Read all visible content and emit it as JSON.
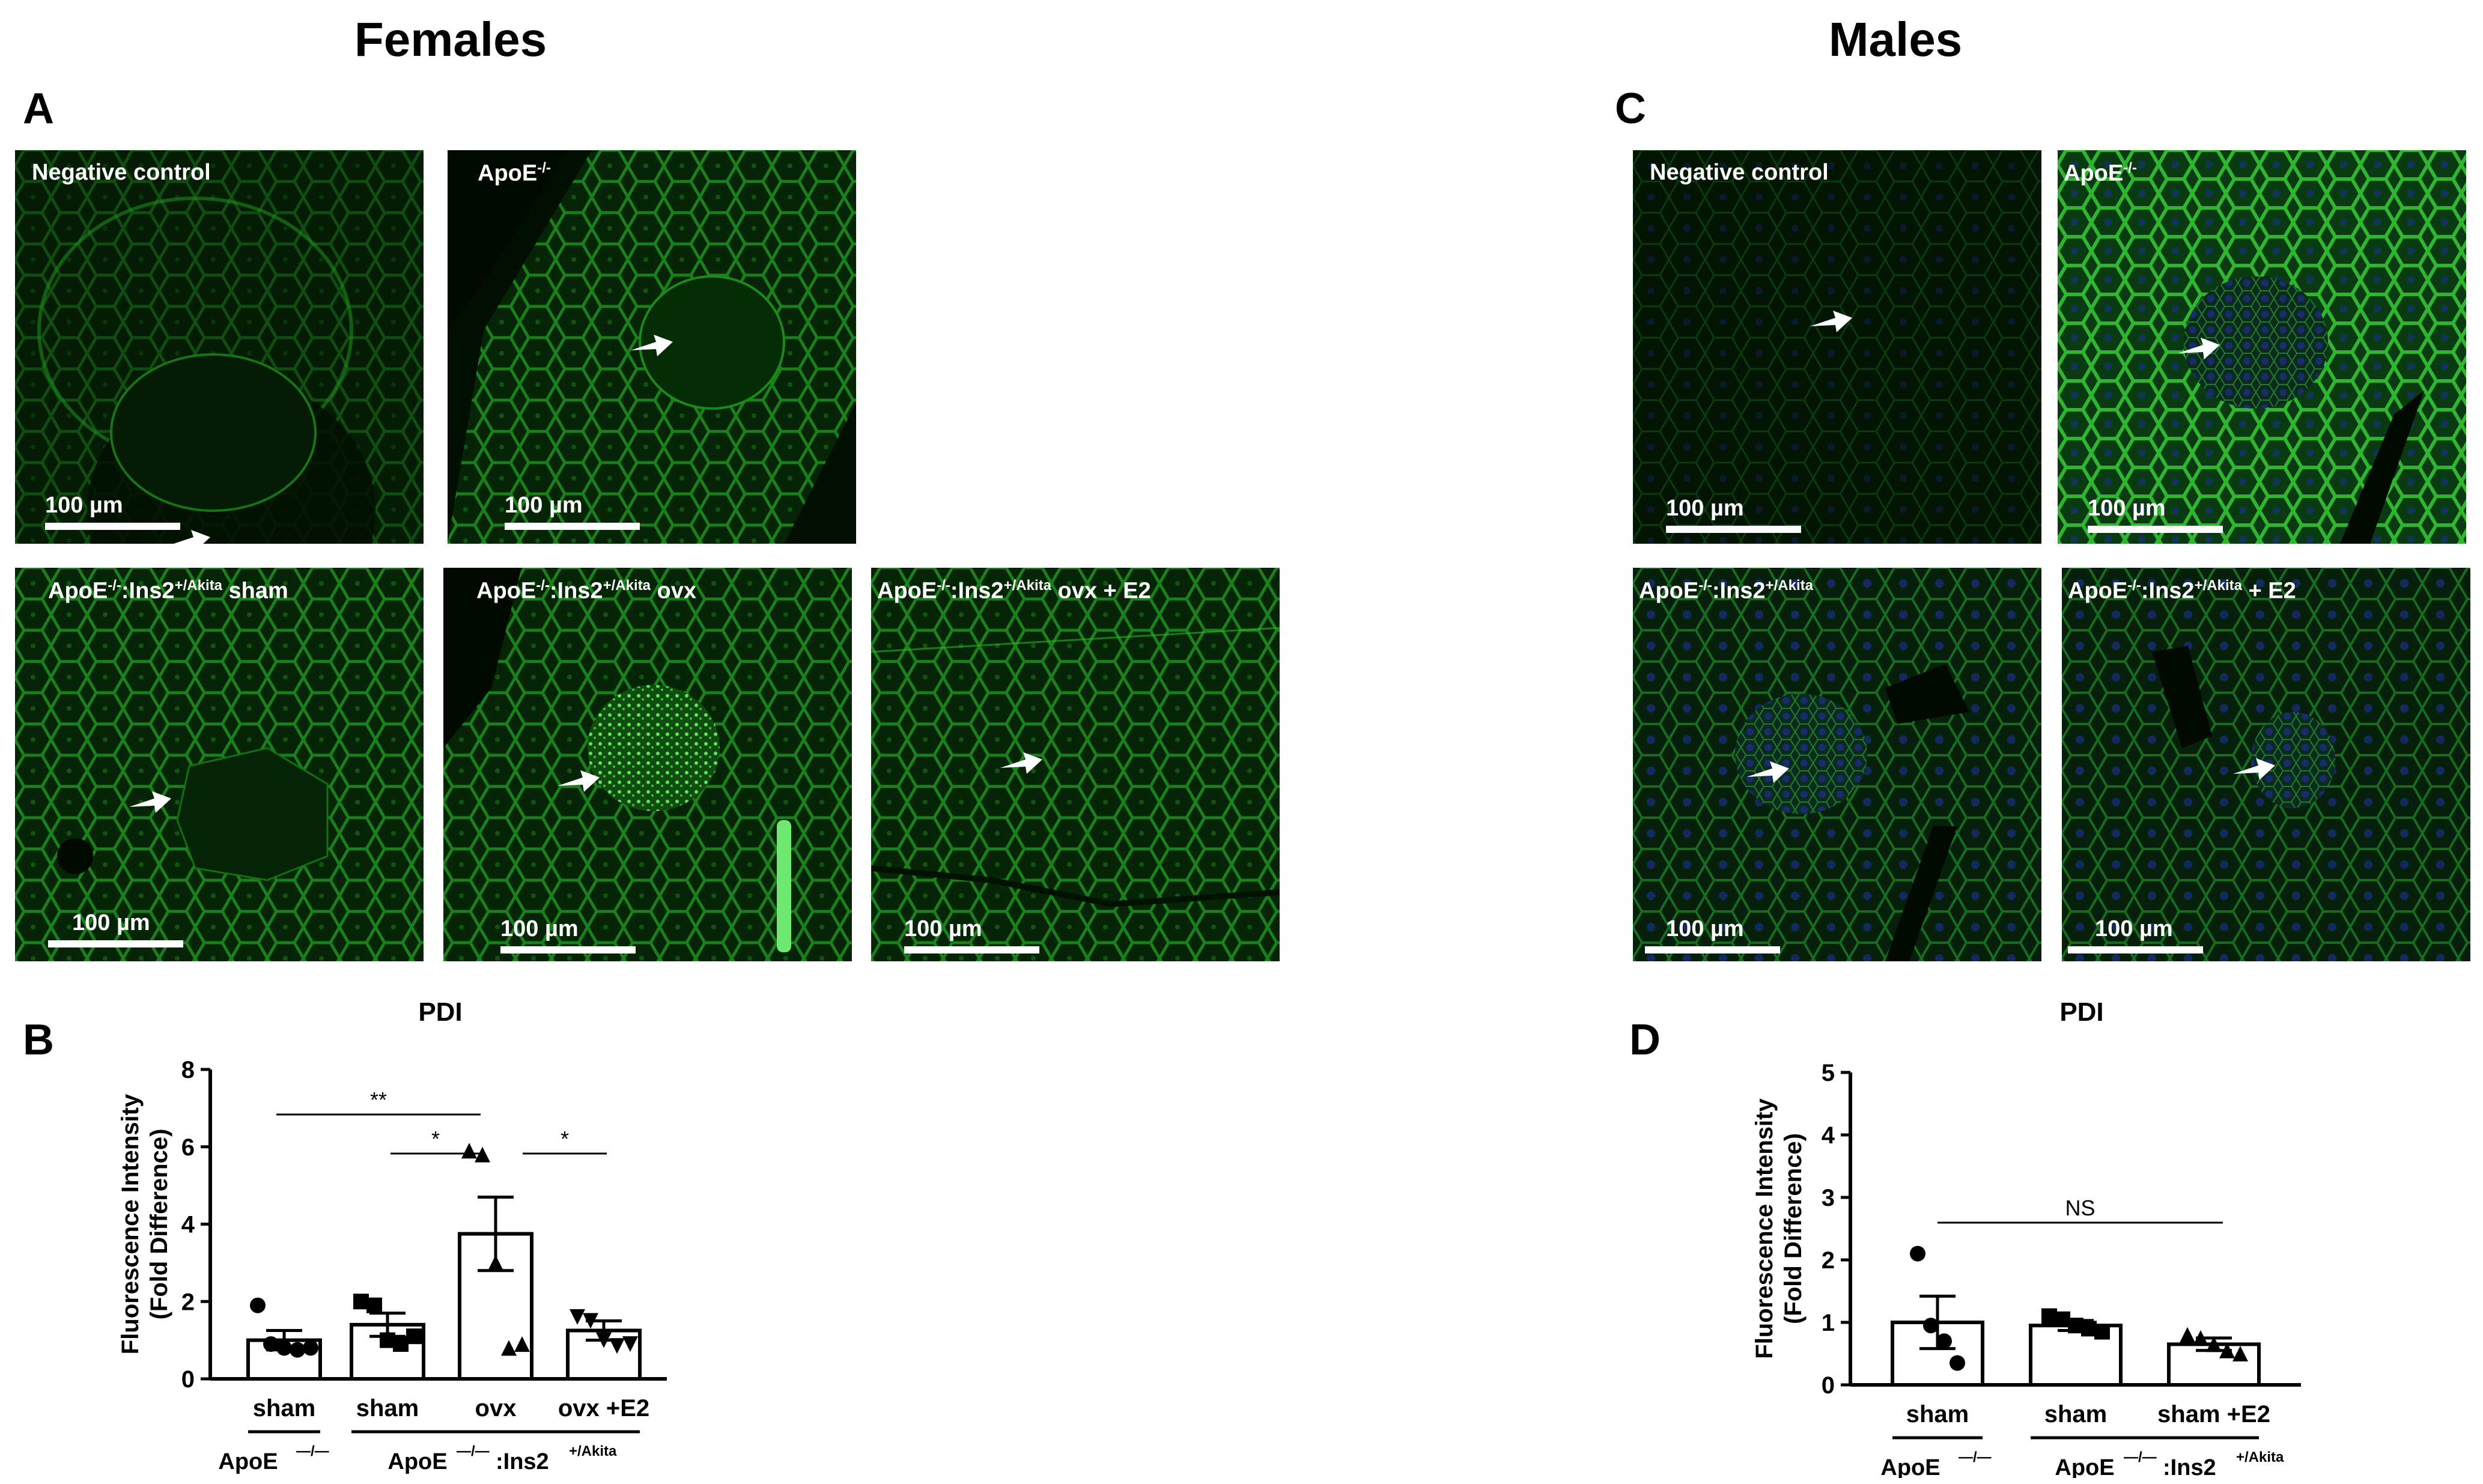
{
  "sections": {
    "females": "Females",
    "males": "Males"
  },
  "panel_letters": {
    "a": "A",
    "b": "B",
    "c": "C",
    "d": "D"
  },
  "micrographs": {
    "scale_label": "100 µm",
    "fa1": {
      "label": "Negative control",
      "sup": "",
      "tail": ""
    },
    "fa2": {
      "label": "ApoE",
      "sup": "-/-",
      "tail": ""
    },
    "fa3": {
      "label": "ApoE",
      "sup": "-/-",
      "mid": ":Ins2",
      "sup2": "+/Akita",
      "tail": " sham"
    },
    "fa4": {
      "label": "ApoE",
      "sup": "-/-",
      "mid": ":Ins2",
      "sup2": "+/Akita",
      "tail": " ovx"
    },
    "fa5": {
      "label": "ApoE",
      "sup": "-/-",
      "mid": ":Ins2",
      "sup2": "+/Akita",
      "tail": " ovx + E2"
    },
    "mc1": {
      "label": "Negative control",
      "sup": "",
      "tail": ""
    },
    "mc2": {
      "label": "ApoE",
      "sup": "-/-",
      "tail": ""
    },
    "mc3": {
      "label": "ApoE",
      "sup": "-/-",
      "mid": ":Ins2",
      "sup2": "+/Akita",
      "tail": ""
    },
    "mc4": {
      "label": "ApoE",
      "sup": "-/-",
      "mid": ":Ins2",
      "sup2": "+/Akita",
      "tail": " + E2"
    }
  },
  "colors": {
    "tissue_green": "#1f8f1f",
    "background": "#031603",
    "nuclei_blue": "#1a2f8a"
  },
  "chart_data": [
    {
      "type": "bar",
      "title": "PDI",
      "ylabel": "Fluorescence Intensity (Fold Difference)",
      "ylabel_line1": "Fluorescence Intensity",
      "ylabel_line2": "(Fold Difference)",
      "ylim": [
        0,
        8
      ],
      "yticks": [
        "0",
        "2",
        "4",
        "6",
        "8"
      ],
      "categories": [
        "sham",
        "sham",
        "ovx",
        "ovx +E2"
      ],
      "values": [
        1.0,
        1.4,
        3.75,
        1.25
      ],
      "errors": [
        0.25,
        0.3,
        0.95,
        0.25
      ],
      "markers": [
        "circle",
        "square",
        "triangle-up",
        "triangle-down"
      ],
      "points": [
        [
          1.9,
          0.9,
          0.8,
          0.75,
          0.8
        ],
        [
          2.0,
          1.9,
          1.0,
          0.9,
          1.1
        ],
        [
          5.9,
          5.8,
          3.0,
          0.8,
          0.9
        ],
        [
          1.6,
          1.5,
          1.0,
          0.85,
          0.9
        ]
      ],
      "group_labels": [
        "ApoE",
        "ApoE",
        ":Ins2"
      ],
      "group_label_sups": [
        "—/—",
        "—/—",
        "+/Akita"
      ],
      "significance": [
        {
          "from": 0,
          "to": 2,
          "label": "**"
        },
        {
          "from": 1,
          "to": 2,
          "label": "*"
        },
        {
          "from": 2,
          "to": 3,
          "label": "*"
        }
      ]
    },
    {
      "type": "bar",
      "title": "PDI",
      "ylabel": "Fluorescence Intensity (Fold Difference)",
      "ylabel_line1": "Fluorescence Intensity",
      "ylabel_line2": "(Fold Difference)",
      "ylim": [
        0,
        5
      ],
      "yticks": [
        "0",
        "1",
        "2",
        "3",
        "4",
        "5"
      ],
      "categories": [
        "sham",
        "sham",
        "sham +E2"
      ],
      "values": [
        1.0,
        0.95,
        0.65
      ],
      "errors": [
        0.42,
        0.08,
        0.1
      ],
      "markers": [
        "circle",
        "square",
        "triangle-up"
      ],
      "points": [
        [
          2.1,
          0.95,
          0.7,
          0.35
        ],
        [
          1.1,
          1.05,
          0.95,
          0.9,
          0.85
        ],
        [
          0.8,
          0.75,
          0.65,
          0.55,
          0.5
        ]
      ],
      "group_labels": [
        "ApoE",
        "ApoE",
        ":Ins2"
      ],
      "group_label_sups": [
        "—/—",
        "—/—",
        "+/Akita"
      ],
      "significance": [
        {
          "from": 0,
          "to": 2,
          "label": "NS"
        }
      ]
    }
  ]
}
